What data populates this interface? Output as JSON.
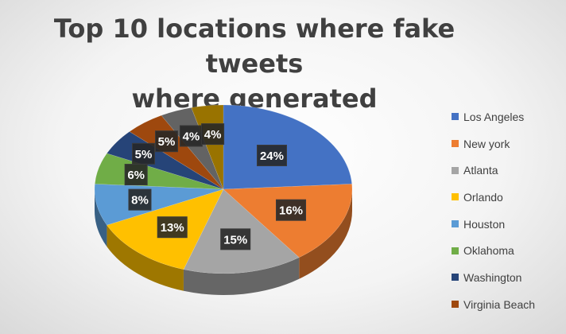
{
  "chart_data": {
    "type": "pie",
    "title": "Top 10 locations where fake tweets where generated",
    "title_lines": [
      "Top 10 locations where fake tweets",
      "where generated"
    ],
    "categories": [
      "Los Angeles",
      "New york",
      "Atlanta",
      "Orlando",
      "Houston",
      "Oklahoma",
      "Washington",
      "Virginia Beach",
      "",
      ""
    ],
    "values": [
      24,
      16,
      15,
      13,
      8,
      6,
      5,
      5,
      4,
      4
    ],
    "data_labels": [
      "24%",
      "16%",
      "15%",
      "13%",
      "8%",
      "6%",
      "5%",
      "5%",
      "4%",
      "4%"
    ],
    "colors": [
      "#4472c4",
      "#ed7d31",
      "#a5a5a5",
      "#ffc000",
      "#5b9bd5",
      "#70ad47",
      "#264478",
      "#9e480e",
      "#636363",
      "#997300"
    ],
    "style": "3d-pie",
    "legend": {
      "position": "right",
      "items": [
        {
          "label": "Los Angeles",
          "color": "#4472c4"
        },
        {
          "label": "New york",
          "color": "#ed7d31"
        },
        {
          "label": "Atlanta",
          "color": "#a5a5a5"
        },
        {
          "label": "Orlando",
          "color": "#ffc000"
        },
        {
          "label": "Houston",
          "color": "#5b9bd5"
        },
        {
          "label": "Oklahoma",
          "color": "#70ad47"
        },
        {
          "label": "Washington",
          "color": "#264478"
        },
        {
          "label": "Virginia Beach",
          "color": "#9e480e"
        }
      ]
    }
  }
}
